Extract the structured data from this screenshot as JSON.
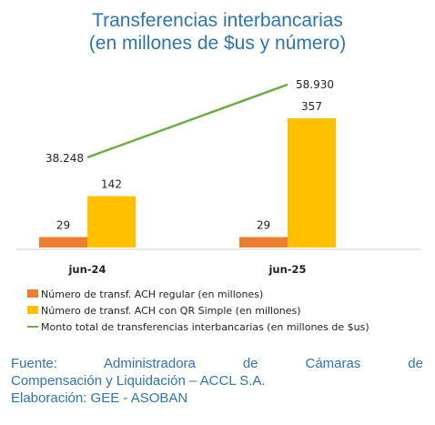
{
  "header": {
    "title_line1": "Transferencias interbancarias",
    "title_line2": "(en millones de $us y número)"
  },
  "chart_data": {
    "type": "bar",
    "categories": [
      "jun-24",
      "jun-25"
    ],
    "series": [
      {
        "name": "Número de transf. ACH regular (en millones)",
        "kind": "bar",
        "color": "#ed7d31",
        "values": [
          29,
          29
        ],
        "labels": [
          "29",
          "29"
        ]
      },
      {
        "name": "Número de transf. ACH con QR Simple (en millones)",
        "kind": "bar",
        "color": "#ffc000",
        "values": [
          142,
          357
        ],
        "labels": [
          "142",
          "357"
        ]
      },
      {
        "name": "Monto total de transferencias interbancarias (en millones de $us)",
        "kind": "line",
        "color": "#70ad47",
        "values": [
          38248,
          58930
        ],
        "labels": [
          "38.248",
          "58.930"
        ]
      }
    ],
    "grid": false,
    "legend_position": "bottom"
  },
  "footer": {
    "source_line1": "Fuente: Administradora de Cámaras de",
    "source_line2": "Compensación y Liquidación – ACCL S.A.",
    "source_line3": "Elaboración: GEE - ASOBAN"
  }
}
